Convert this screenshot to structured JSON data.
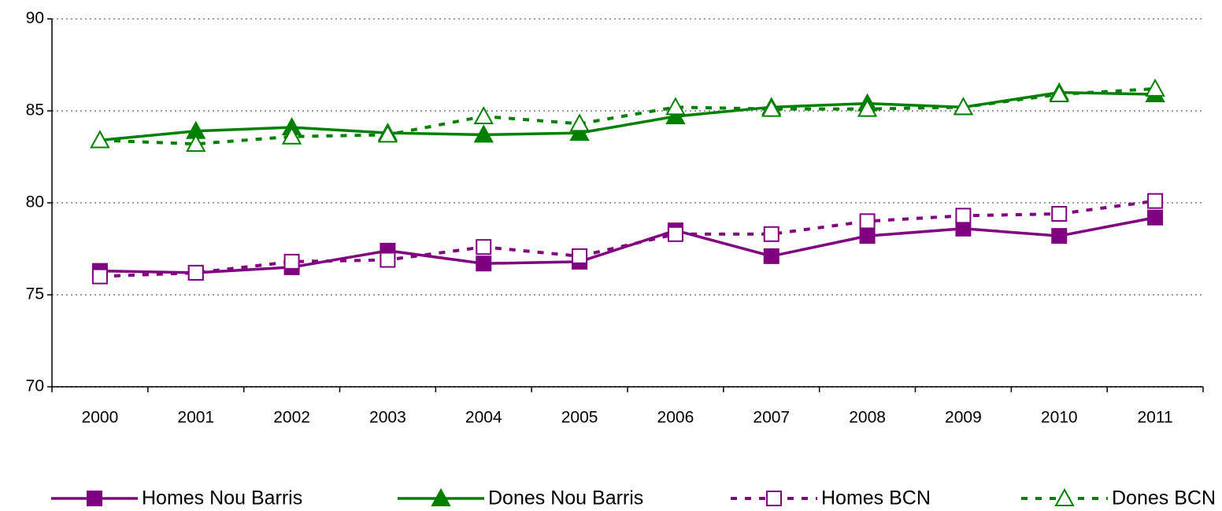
{
  "chart_data": {
    "type": "line",
    "categories": [
      "2000",
      "2001",
      "2002",
      "2003",
      "2004",
      "2005",
      "2006",
      "2007",
      "2008",
      "2009",
      "2010",
      "2011"
    ],
    "series": [
      {
        "name": "Homes Nou Barris",
        "color": "#800080",
        "dashed": false,
        "marker": "square",
        "filled": true,
        "values": [
          76.3,
          76.2,
          76.5,
          77.4,
          76.7,
          76.8,
          78.5,
          77.1,
          78.2,
          78.6,
          78.2,
          79.2
        ]
      },
      {
        "name": "Dones Nou Barris",
        "color": "#008000",
        "dashed": false,
        "marker": "triangle",
        "filled": true,
        "values": [
          83.4,
          83.9,
          84.1,
          83.8,
          83.7,
          83.8,
          84.7,
          85.2,
          85.4,
          85.2,
          86.0,
          85.9
        ]
      },
      {
        "name": "Homes BCN",
        "color": "#800080",
        "dashed": true,
        "marker": "square",
        "filled": false,
        "values": [
          76.0,
          76.2,
          76.8,
          76.9,
          77.6,
          77.1,
          78.3,
          78.3,
          79.0,
          79.3,
          79.4,
          80.1
        ]
      },
      {
        "name": "Dones BCN",
        "color": "#008000",
        "dashed": true,
        "marker": "triangle",
        "filled": false,
        "values": [
          83.4,
          83.2,
          83.6,
          83.7,
          84.7,
          84.3,
          85.2,
          85.1,
          85.1,
          85.2,
          85.9,
          86.2
        ]
      }
    ],
    "ylim": [
      70,
      90
    ],
    "yticks": [
      70,
      75,
      80,
      85,
      90
    ],
    "grid": true,
    "legend": "bottom"
  }
}
